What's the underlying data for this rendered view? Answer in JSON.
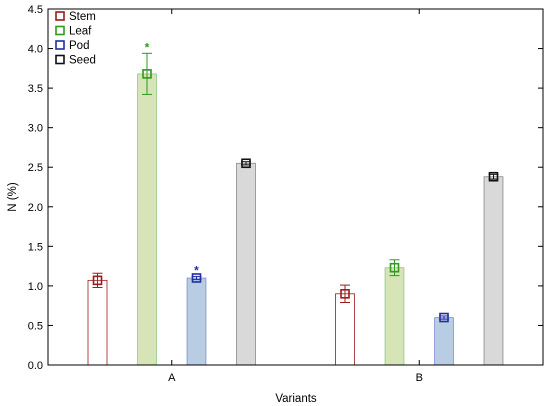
{
  "chart_data": {
    "type": "bar",
    "categories": [
      "A",
      "B"
    ],
    "xlabel": "Variants",
    "ylabel": "N (%)",
    "ylim": [
      0,
      4.5
    ],
    "yticks": [
      "0.0",
      "0.5",
      "1.0",
      "1.5",
      "2.0",
      "2.5",
      "3.0",
      "3.5",
      "4.0",
      "4.5"
    ],
    "grid": false,
    "legend_position": "top-left",
    "series": [
      {
        "name": "Stem",
        "values": [
          1.07,
          0.9
        ],
        "errors": [
          0.09,
          0.11
        ],
        "significance": [
          "",
          ""
        ],
        "color": "#9b1c1c",
        "fill": "#ffffff"
      },
      {
        "name": "Leaf",
        "values": [
          3.68,
          1.23
        ],
        "errors": [
          0.26,
          0.1
        ],
        "significance": [
          "*",
          ""
        ],
        "color": "#2e9a1e",
        "fill": "#d6e4b8"
      },
      {
        "name": "Pod",
        "values": [
          1.1,
          0.6
        ],
        "errors": [
          0.02,
          0.02
        ],
        "significance": [
          "*",
          ""
        ],
        "color": "#1f2fa3",
        "fill": "#b8cce4"
      },
      {
        "name": "Seed",
        "values": [
          2.55,
          2.38
        ],
        "errors": [
          0.02,
          0.03
        ],
        "significance": [
          "",
          ""
        ],
        "color": "#111111",
        "fill": "#d9d9d9"
      }
    ]
  }
}
